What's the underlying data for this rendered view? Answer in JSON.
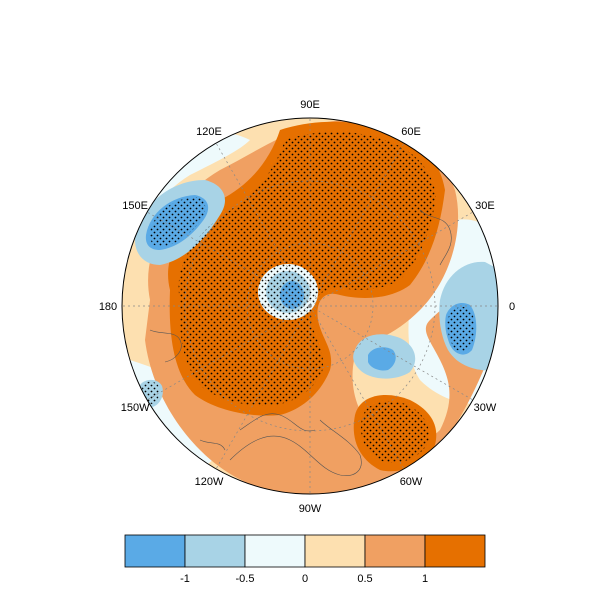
{
  "map": {
    "projection": "polar-stereographic-north",
    "longitude_labels": [
      "90E",
      "60E",
      "30E",
      "0",
      "30W",
      "60W",
      "90W",
      "120W",
      "150W",
      "180",
      "150E",
      "120E"
    ],
    "stippling": "significant regions marked with dots"
  },
  "colorbar": {
    "colors": [
      "#5aaae6",
      "#a8d3e6",
      "#eefafc",
      "#fde0b0",
      "#f0a062",
      "#e67000"
    ],
    "tick_labels": [
      "-1",
      "-0.5",
      "0",
      "0.5",
      "1"
    ],
    "tick_values": [
      -1,
      -0.5,
      0,
      0.5,
      1
    ]
  }
}
